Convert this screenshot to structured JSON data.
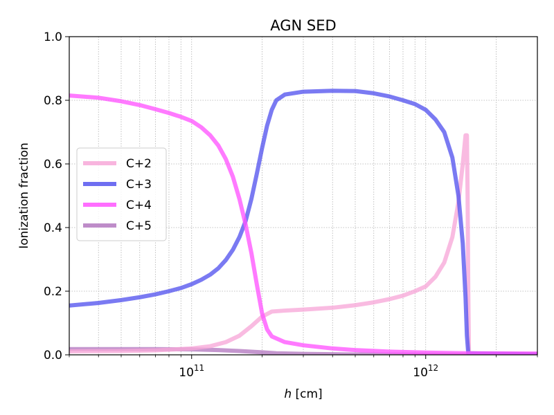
{
  "chart_data": {
    "type": "line",
    "title": "AGN SED",
    "xlabel_italic": "h",
    "xlabel_rest": " [cm]",
    "ylabel": "Ionization fraction",
    "xscale": "log",
    "xlim": [
      30000000000.0,
      3000000000000.0
    ],
    "ylim": [
      0.0,
      1.0
    ],
    "grid": true,
    "legend_position": "center-left",
    "yticks": [
      {
        "value": 0.0,
        "label": "0.0"
      },
      {
        "value": 0.2,
        "label": "0.2"
      },
      {
        "value": 0.4,
        "label": "0.4"
      },
      {
        "value": 0.6,
        "label": "0.6"
      },
      {
        "value": 0.8,
        "label": "0.8"
      },
      {
        "value": 1.0,
        "label": "1.0"
      }
    ],
    "xticks": [
      {
        "value": 100000000000.0,
        "base": "10",
        "exp": "11"
      },
      {
        "value": 1000000000000.0,
        "base": "10",
        "exp": "12"
      }
    ],
    "series": [
      {
        "name": "C+2",
        "color": "#f7a8d8",
        "points": [
          [
            30000000000.0,
            0.011
          ],
          [
            50000000000.0,
            0.012
          ],
          [
            70000000000.0,
            0.014
          ],
          [
            100000000000.0,
            0.02
          ],
          [
            120000000000.0,
            0.027
          ],
          [
            140000000000.0,
            0.04
          ],
          [
            160000000000.0,
            0.06
          ],
          [
            180000000000.0,
            0.09
          ],
          [
            200000000000.0,
            0.12
          ],
          [
            220000000000.0,
            0.136
          ],
          [
            250000000000.0,
            0.139
          ],
          [
            300000000000.0,
            0.142
          ],
          [
            400000000000.0,
            0.148
          ],
          [
            500000000000.0,
            0.156
          ],
          [
            600000000000.0,
            0.165
          ],
          [
            700000000000.0,
            0.175
          ],
          [
            800000000000.0,
            0.186
          ],
          [
            900000000000.0,
            0.2
          ],
          [
            1000000000000.0,
            0.215
          ],
          [
            1100000000000.0,
            0.245
          ],
          [
            1200000000000.0,
            0.29
          ],
          [
            1300000000000.0,
            0.37
          ],
          [
            1380000000000.0,
            0.48
          ],
          [
            1440000000000.0,
            0.6
          ],
          [
            1480000000000.0,
            0.69
          ],
          [
            1500000000000.0,
            0.69
          ],
          [
            1510000000000.0,
            0.5
          ],
          [
            1520000000000.0,
            0.2
          ],
          [
            1530000000000.0,
            0.005
          ],
          [
            3000000000000.0,
            0.002
          ]
        ]
      },
      {
        "name": "C+3",
        "color": "#5555ee",
        "points": [
          [
            30000000000.0,
            0.155
          ],
          [
            40000000000.0,
            0.163
          ],
          [
            50000000000.0,
            0.172
          ],
          [
            60000000000.0,
            0.181
          ],
          [
            70000000000.0,
            0.19
          ],
          [
            80000000000.0,
            0.2
          ],
          [
            90000000000.0,
            0.21
          ],
          [
            100000000000.0,
            0.222
          ],
          [
            110000000000.0,
            0.236
          ],
          [
            120000000000.0,
            0.252
          ],
          [
            130000000000.0,
            0.272
          ],
          [
            140000000000.0,
            0.298
          ],
          [
            150000000000.0,
            0.33
          ],
          [
            160000000000.0,
            0.37
          ],
          [
            170000000000.0,
            0.42
          ],
          [
            180000000000.0,
            0.49
          ],
          [
            190000000000.0,
            0.57
          ],
          [
            200000000000.0,
            0.65
          ],
          [
            210000000000.0,
            0.72
          ],
          [
            220000000000.0,
            0.77
          ],
          [
            230000000000.0,
            0.8
          ],
          [
            250000000000.0,
            0.818
          ],
          [
            300000000000.0,
            0.827
          ],
          [
            400000000000.0,
            0.83
          ],
          [
            500000000000.0,
            0.829
          ],
          [
            600000000000.0,
            0.822
          ],
          [
            700000000000.0,
            0.812
          ],
          [
            800000000000.0,
            0.8
          ],
          [
            900000000000.0,
            0.788
          ],
          [
            1000000000000.0,
            0.77
          ],
          [
            1100000000000.0,
            0.74
          ],
          [
            1200000000000.0,
            0.7
          ],
          [
            1300000000000.0,
            0.62
          ],
          [
            1380000000000.0,
            0.5
          ],
          [
            1440000000000.0,
            0.35
          ],
          [
            1480000000000.0,
            0.18
          ],
          [
            1500000000000.0,
            0.06
          ],
          [
            1520000000000.0,
            0.005
          ],
          [
            3000000000000.0,
            0.001
          ]
        ]
      },
      {
        "name": "C+4",
        "color": "#ff55ff",
        "points": [
          [
            30000000000.0,
            0.815
          ],
          [
            40000000000.0,
            0.808
          ],
          [
            50000000000.0,
            0.797
          ],
          [
            60000000000.0,
            0.785
          ],
          [
            70000000000.0,
            0.772
          ],
          [
            80000000000.0,
            0.76
          ],
          [
            90000000000.0,
            0.748
          ],
          [
            100000000000.0,
            0.735
          ],
          [
            110000000000.0,
            0.715
          ],
          [
            120000000000.0,
            0.69
          ],
          [
            130000000000.0,
            0.658
          ],
          [
            140000000000.0,
            0.615
          ],
          [
            150000000000.0,
            0.56
          ],
          [
            160000000000.0,
            0.49
          ],
          [
            170000000000.0,
            0.41
          ],
          [
            180000000000.0,
            0.32
          ],
          [
            190000000000.0,
            0.22
          ],
          [
            200000000000.0,
            0.13
          ],
          [
            210000000000.0,
            0.08
          ],
          [
            220000000000.0,
            0.058
          ],
          [
            250000000000.0,
            0.04
          ],
          [
            300000000000.0,
            0.03
          ],
          [
            400000000000.0,
            0.02
          ],
          [
            500000000000.0,
            0.015
          ],
          [
            700000000000.0,
            0.01
          ],
          [
            1000000000000.0,
            0.007
          ],
          [
            1500000000000.0,
            0.005
          ],
          [
            3000000000000.0,
            0.004
          ]
        ]
      },
      {
        "name": "C+5",
        "color": "#b378c0",
        "points": [
          [
            30000000000.0,
            0.018
          ],
          [
            50000000000.0,
            0.018
          ],
          [
            70000000000.0,
            0.018
          ],
          [
            100000000000.0,
            0.017
          ],
          [
            130000000000.0,
            0.015
          ],
          [
            160000000000.0,
            0.012
          ],
          [
            200000000000.0,
            0.008
          ],
          [
            230000000000.0,
            0.005
          ],
          [
            300000000000.0,
            0.003
          ],
          [
            500000000000.0,
            0.001
          ],
          [
            1000000000000.0,
            0.0005
          ],
          [
            3000000000000.0,
            0.0002
          ]
        ]
      }
    ]
  }
}
